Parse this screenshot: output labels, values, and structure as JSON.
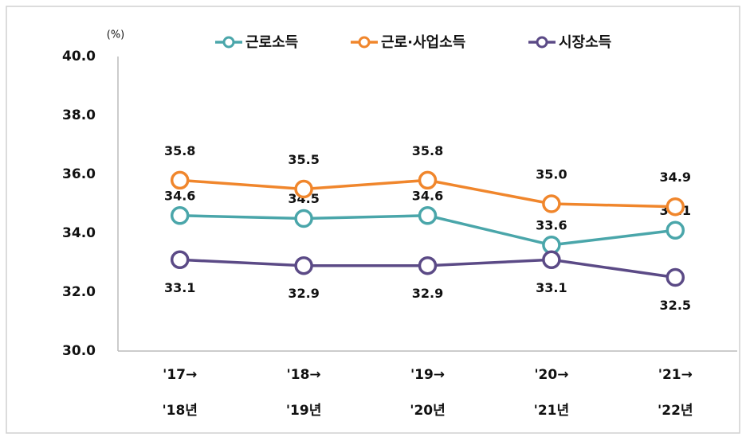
{
  "chart_data": {
    "type": "line",
    "unit_label": "(%)",
    "categories": [
      [
        "'17→",
        "'18년"
      ],
      [
        "'18→",
        "'19년"
      ],
      [
        "'19→",
        "'20년"
      ],
      [
        "'20→",
        "'21년"
      ],
      [
        "'21→",
        "'22년"
      ]
    ],
    "series": [
      {
        "name": "근로소득",
        "color": "#4aa6aa",
        "values": [
          34.6,
          34.5,
          34.6,
          33.6,
          34.1
        ],
        "value_labels": [
          "34.6",
          "34.5",
          "34.6",
          "33.6",
          "34.1"
        ]
      },
      {
        "name": "근로·사업소득",
        "color": "#f0862c",
        "values": [
          35.8,
          35.5,
          35.8,
          35.0,
          34.9
        ],
        "value_labels": [
          "35.8",
          "35.5",
          "35.8",
          "35.0",
          "34.9"
        ]
      },
      {
        "name": "시장소득",
        "color": "#5b4a86",
        "values": [
          33.1,
          32.9,
          32.9,
          33.1,
          32.5
        ],
        "value_labels": [
          "33.1",
          "32.9",
          "32.9",
          "33.1",
          "32.5"
        ]
      }
    ],
    "ylim": [
      30,
      40
    ],
    "yticks": [
      {
        "value": 30,
        "label": "30.0"
      },
      {
        "value": 32,
        "label": "32.0"
      },
      {
        "value": 34,
        "label": "34.0"
      },
      {
        "value": 36,
        "label": "36.0"
      },
      {
        "value": 38,
        "label": "38.0"
      },
      {
        "value": 40,
        "label": "40.0"
      }
    ],
    "grid": false,
    "legend": "top"
  }
}
